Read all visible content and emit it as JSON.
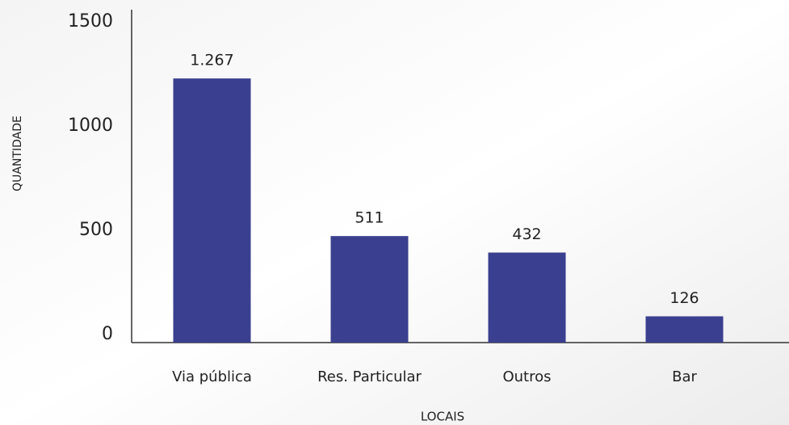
{
  "chart_data": {
    "type": "bar",
    "x_label": "LOCAIS",
    "y_label": "QUANTIDADE",
    "categories": [
      "Via pública",
      "Res. Particular",
      "Outros",
      "Bar"
    ],
    "values": [
      1267,
      511,
      432,
      126
    ],
    "value_labels": [
      "1.267",
      "511",
      "432",
      "126"
    ],
    "color": "#3b3f8f",
    "ylim": [
      0,
      1500
    ],
    "yticks": [
      0,
      500,
      1000,
      1500
    ],
    "grid": false
  }
}
